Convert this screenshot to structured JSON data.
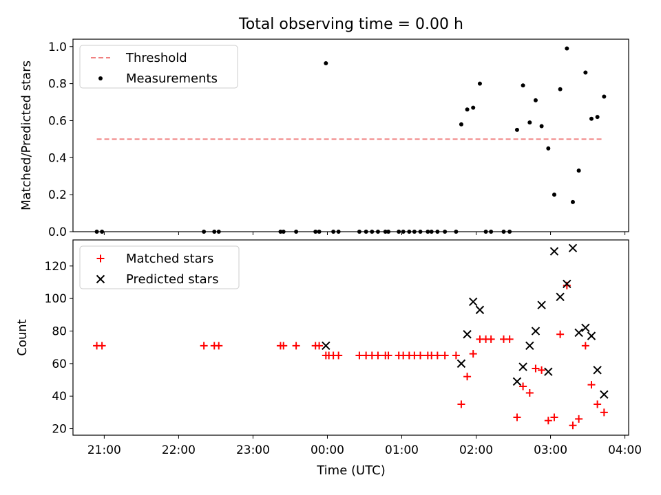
{
  "figure": {
    "title": "Total observing time = 0.00 h",
    "xlabel": "Time (UTC)"
  },
  "chart_data": [
    {
      "type": "scatter",
      "ylabel": "Matched/Predicted stars",
      "ylim": [
        0,
        1.04
      ],
      "yticks": [
        0.0,
        0.2,
        0.4,
        0.6,
        0.8,
        1.0
      ],
      "ytick_labels": [
        "0.0",
        "0.2",
        "0.4",
        "0.6",
        "0.8",
        "1.0"
      ],
      "xlim": [
        20.58,
        28.05
      ],
      "xticks": [
        21,
        22,
        23,
        24,
        25,
        26,
        27,
        28
      ],
      "xtick_labels": [
        "21:00",
        "22:00",
        "23:00",
        "00:00",
        "01:00",
        "02:00",
        "03:00",
        "04:00"
      ],
      "show_xtick_labels": false,
      "legend": {
        "position": "top-left",
        "entries": [
          "Threshold",
          "Measurements"
        ]
      },
      "threshold": {
        "name": "Threshold",
        "value": 0.5,
        "x_range": [
          20.9,
          27.72
        ],
        "color": "#f08080",
        "style": "dashed"
      },
      "series": [
        {
          "name": "Measurements",
          "marker": "dot",
          "color": "#000000",
          "x": [
            20.9,
            20.97,
            22.34,
            22.48,
            22.54,
            23.37,
            23.41,
            23.58,
            23.84,
            23.89,
            23.98,
            24.08,
            24.15,
            24.43,
            24.52,
            24.6,
            24.68,
            24.78,
            24.82,
            24.96,
            25.02,
            25.1,
            25.17,
            25.25,
            25.35,
            25.4,
            25.48,
            25.58,
            25.73,
            25.8,
            25.88,
            25.96,
            26.05,
            26.13,
            26.2,
            26.37,
            26.45,
            26.55,
            26.63,
            26.72,
            26.8,
            26.88,
            26.97,
            27.05,
            27.13,
            27.22,
            27.3,
            27.38,
            27.47,
            27.55,
            27.63,
            27.72
          ],
          "y": [
            0,
            0,
            0,
            0,
            0,
            0,
            0,
            0,
            0,
            0,
            0.91,
            0,
            0,
            0,
            0,
            0,
            0,
            0,
            0,
            0,
            0,
            0,
            0,
            0,
            0,
            0,
            0,
            0,
            0,
            0.58,
            0.66,
            0.67,
            0.8,
            0,
            0,
            0,
            0,
            0.55,
            0.79,
            0.59,
            0.71,
            0.57,
            0.45,
            0.2,
            0.77,
            0.99,
            0.16,
            0.33,
            0.86,
            0.61,
            0.62,
            0.73
          ]
        }
      ]
    },
    {
      "type": "scatter",
      "ylabel": "Count",
      "ylim": [
        16,
        136
      ],
      "yticks": [
        20,
        40,
        60,
        80,
        100,
        120
      ],
      "ytick_labels": [
        "20",
        "40",
        "60",
        "80",
        "100",
        "120"
      ],
      "xlim": [
        20.58,
        28.05
      ],
      "xticks": [
        21,
        22,
        23,
        24,
        25,
        26,
        27,
        28
      ],
      "xtick_labels": [
        "21:00",
        "22:00",
        "23:00",
        "00:00",
        "01:00",
        "02:00",
        "03:00",
        "04:00"
      ],
      "show_xtick_labels": true,
      "legend": {
        "position": "top-left",
        "entries": [
          "Matched stars",
          "Predicted stars"
        ]
      },
      "series": [
        {
          "name": "Matched stars",
          "marker": "plus",
          "color": "#ff0000",
          "x": [
            20.9,
            20.97,
            22.34,
            22.48,
            22.54,
            23.37,
            23.41,
            23.58,
            23.84,
            23.89,
            23.98,
            24.02,
            24.08,
            24.15,
            24.43,
            24.52,
            24.6,
            24.68,
            24.78,
            24.82,
            24.96,
            25.02,
            25.1,
            25.17,
            25.25,
            25.35,
            25.4,
            25.48,
            25.58,
            25.73,
            25.8,
            25.88,
            25.96,
            26.05,
            26.13,
            26.2,
            26.37,
            26.45,
            26.55,
            26.63,
            26.72,
            26.8,
            26.88,
            26.97,
            27.05,
            27.13,
            27.22,
            27.3,
            27.38,
            27.47,
            27.55,
            27.63,
            27.72
          ],
          "y": [
            71,
            71,
            71,
            71,
            71,
            71,
            71,
            71,
            71,
            71,
            65,
            65,
            65,
            65,
            65,
            65,
            65,
            65,
            65,
            65,
            65,
            65,
            65,
            65,
            65,
            65,
            65,
            65,
            65,
            65,
            35,
            52,
            66,
            75,
            75,
            75,
            75,
            75,
            27,
            46,
            42,
            57,
            56,
            25,
            27,
            78,
            108,
            22,
            26,
            71,
            47,
            35,
            30
          ]
        },
        {
          "name": "Predicted stars",
          "marker": "x",
          "color": "#000000",
          "x": [
            23.98,
            25.8,
            25.88,
            25.96,
            26.05,
            26.55,
            26.63,
            26.72,
            26.8,
            26.88,
            26.97,
            27.05,
            27.13,
            27.22,
            27.3,
            27.38,
            27.47,
            27.55,
            27.63,
            27.72
          ],
          "y": [
            71,
            60,
            78,
            98,
            93,
            49,
            58,
            71,
            80,
            96,
            55,
            129,
            101,
            109,
            131,
            79,
            82,
            77,
            56,
            41
          ]
        }
      ]
    }
  ]
}
